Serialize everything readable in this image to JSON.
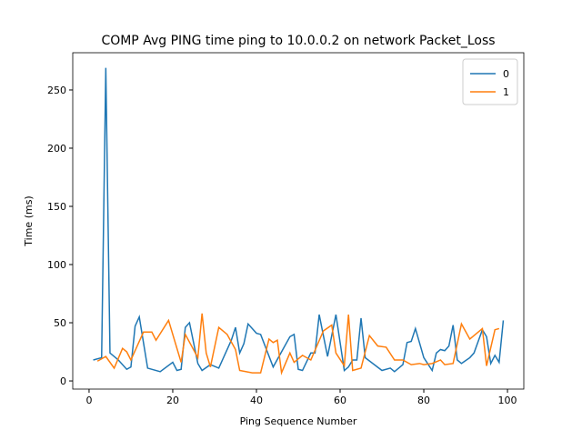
{
  "chart_data": {
    "type": "line",
    "title": "COMP Avg PING time ping to 10.0.0.2 on network Packet_Loss",
    "x_label": "Ping Sequence Number",
    "y_label": "Time (ms)",
    "xlim": [
      -3.9,
      103.9
    ],
    "ylim": [
      -7,
      282
    ],
    "xticks": [
      0,
      20,
      40,
      60,
      80,
      100
    ],
    "yticks": [
      0,
      50,
      100,
      150,
      200,
      250
    ],
    "legend": "upper right",
    "series": [
      {
        "name": "0",
        "color": "#1f77b4",
        "x": [
          1,
          3,
          4,
          5,
          7,
          9,
          10,
          11,
          12,
          14,
          17,
          20,
          21,
          22,
          23,
          24,
          26,
          27,
          29,
          31,
          34,
          35,
          36,
          37,
          38,
          40,
          41,
          44,
          48,
          49,
          50,
          51,
          53,
          54,
          55,
          57,
          59,
          61,
          62,
          63,
          64,
          65,
          66,
          70,
          72,
          73,
          75,
          76,
          77,
          78,
          80,
          82,
          83,
          84,
          85,
          86,
          87,
          88,
          89,
          91,
          92,
          94,
          95,
          96,
          97,
          98,
          99
        ],
        "values": [
          18,
          20,
          269,
          24,
          18,
          10,
          12,
          47,
          55,
          11,
          8,
          16,
          9,
          10,
          46,
          50,
          15,
          9,
          14,
          11,
          35,
          46,
          24,
          32,
          49,
          41,
          40,
          12,
          38,
          40,
          10,
          9,
          24,
          24,
          57,
          21,
          57,
          9,
          12,
          18,
          18,
          54,
          20,
          9,
          11,
          8,
          14,
          33,
          34,
          45,
          20,
          9,
          24,
          27,
          26,
          30,
          48,
          18,
          15,
          20,
          24,
          44,
          38,
          15,
          22,
          16,
          52
        ]
      },
      {
        "name": "1",
        "color": "#ff7f0e",
        "x": [
          2,
          4,
          6,
          8,
          9,
          10,
          13,
          15,
          16,
          19,
          22,
          23,
          26,
          27,
          28,
          29,
          31,
          33,
          35,
          36,
          39,
          41,
          43,
          44,
          45,
          46,
          48,
          49,
          51,
          53,
          56,
          58,
          59,
          61,
          62,
          63,
          65,
          67,
          69,
          71,
          73,
          75,
          77,
          79,
          80,
          82,
          84,
          85,
          87,
          89,
          91,
          94,
          95,
          97,
          98
        ],
        "values": [
          17,
          21,
          11,
          28,
          25,
          18,
          42,
          42,
          35,
          52,
          16,
          40,
          20,
          58,
          24,
          12,
          46,
          40,
          27,
          9,
          7,
          7,
          36,
          33,
          35,
          7,
          24,
          16,
          22,
          18,
          43,
          48,
          24,
          13,
          57,
          9,
          11,
          39,
          30,
          29,
          18,
          18,
          14,
          15,
          14,
          15,
          18,
          14,
          15,
          49,
          36,
          45,
          13,
          44,
          45
        ]
      }
    ]
  }
}
